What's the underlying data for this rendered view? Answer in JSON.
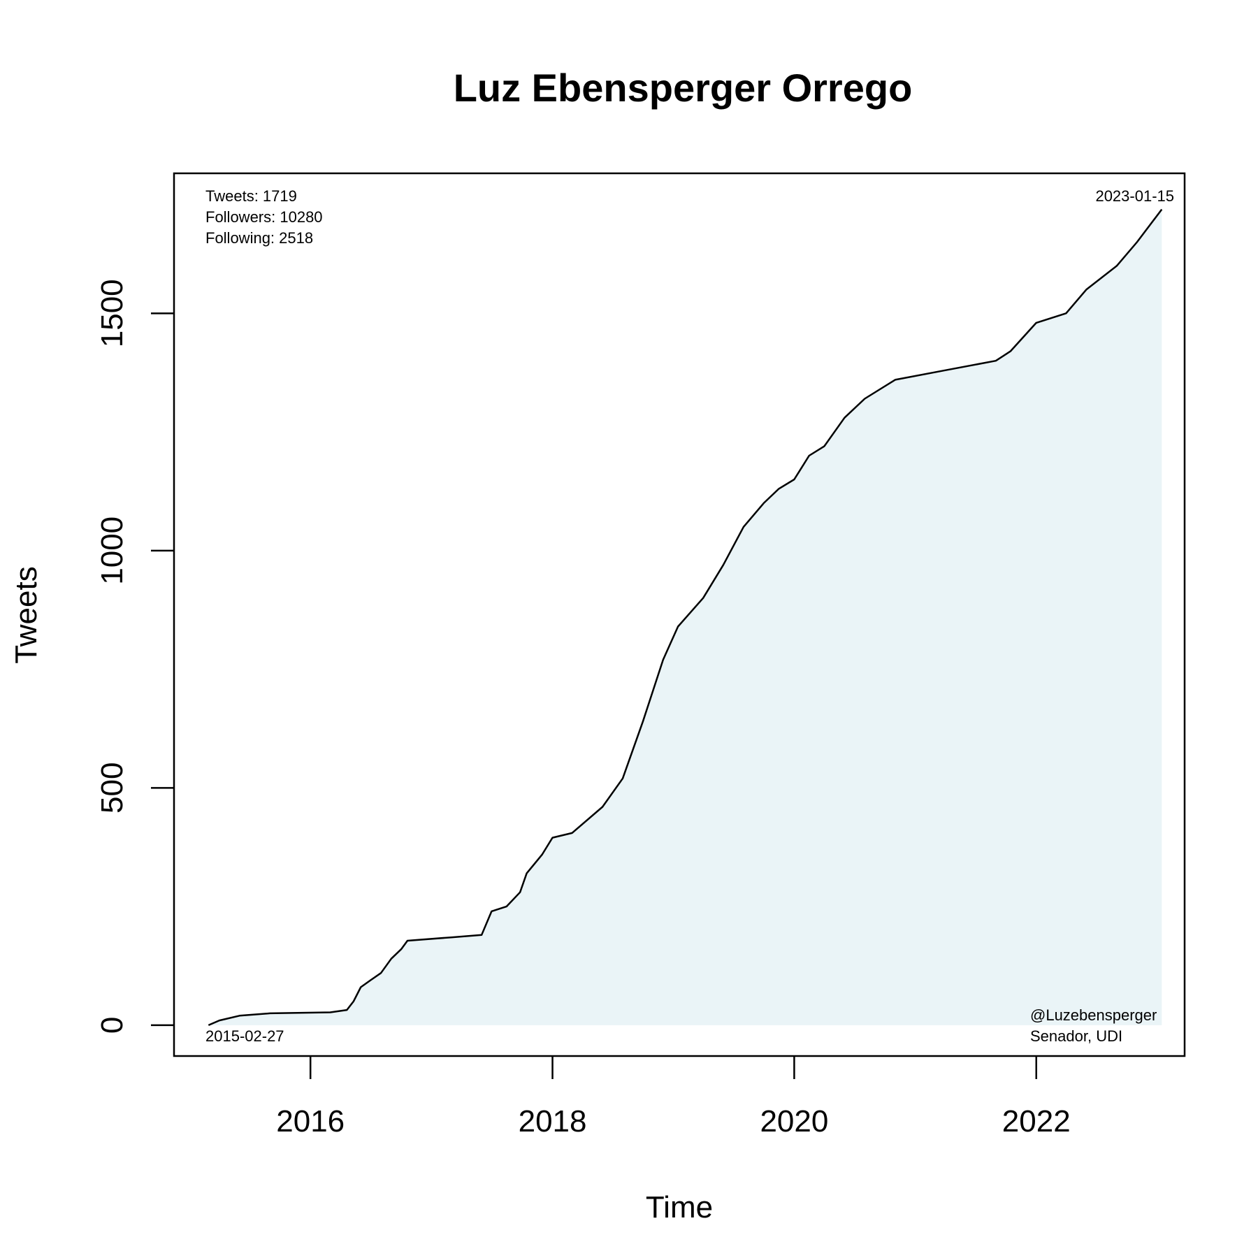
{
  "chart_data": {
    "type": "area",
    "title": "Luz Ebensperger Orrego",
    "xlabel": "Time",
    "ylabel": "Tweets",
    "x_ticks": [
      "2016",
      "2018",
      "2020",
      "2022"
    ],
    "y_ticks": [
      "0",
      "500",
      "1000",
      "1500"
    ],
    "xlim": [
      "2014-11-15",
      "2023-03-25"
    ],
    "ylim": [
      -65,
      1795
    ],
    "grid": false,
    "line_color": "#000000",
    "fill_color": "#eaf4f7",
    "series": [
      {
        "points": [
          [
            "2015-02-27",
            0
          ],
          [
            "2015-04-01",
            10
          ],
          [
            "2015-06-01",
            20
          ],
          [
            "2015-09-01",
            25
          ],
          [
            "2016-03-01",
            27
          ],
          [
            "2016-04-20",
            32
          ],
          [
            "2016-05-10",
            50
          ],
          [
            "2016-06-01",
            80
          ],
          [
            "2016-07-01",
            95
          ],
          [
            "2016-08-01",
            110
          ],
          [
            "2016-09-01",
            140
          ],
          [
            "2016-10-01",
            160
          ],
          [
            "2016-10-20",
            178
          ],
          [
            "2017-03-01",
            185
          ],
          [
            "2017-06-01",
            190
          ],
          [
            "2017-07-01",
            240
          ],
          [
            "2017-08-15",
            250
          ],
          [
            "2017-09-25",
            280
          ],
          [
            "2017-10-15",
            320
          ],
          [
            "2017-12-01",
            360
          ],
          [
            "2018-01-01",
            395
          ],
          [
            "2018-03-01",
            405
          ],
          [
            "2018-06-01",
            460
          ],
          [
            "2018-08-01",
            520
          ],
          [
            "2018-10-01",
            640
          ],
          [
            "2018-12-01",
            770
          ],
          [
            "2019-01-15",
            840
          ],
          [
            "2019-04-01",
            900
          ],
          [
            "2019-06-01",
            970
          ],
          [
            "2019-08-01",
            1050
          ],
          [
            "2019-10-01",
            1100
          ],
          [
            "2019-11-15",
            1130
          ],
          [
            "2020-01-01",
            1150
          ],
          [
            "2020-02-15",
            1200
          ],
          [
            "2020-04-01",
            1220
          ],
          [
            "2020-06-01",
            1280
          ],
          [
            "2020-08-01",
            1320
          ],
          [
            "2020-11-01",
            1360
          ],
          [
            "2021-04-01",
            1380
          ],
          [
            "2021-09-01",
            1400
          ],
          [
            "2021-10-15",
            1420
          ],
          [
            "2022-01-01",
            1480
          ],
          [
            "2022-04-01",
            1500
          ],
          [
            "2022-06-01",
            1550
          ],
          [
            "2022-09-01",
            1600
          ],
          [
            "2022-11-01",
            1650
          ],
          [
            "2023-01-15",
            1719
          ]
        ]
      }
    ]
  },
  "annotations": {
    "stats": [
      "Tweets: 1719",
      "Followers: 10280",
      "Following: 2518"
    ],
    "start_date": "2015-02-27",
    "end_date": "2023-01-15",
    "handle": "@Luzebensperger",
    "role": "Senador, UDI"
  }
}
